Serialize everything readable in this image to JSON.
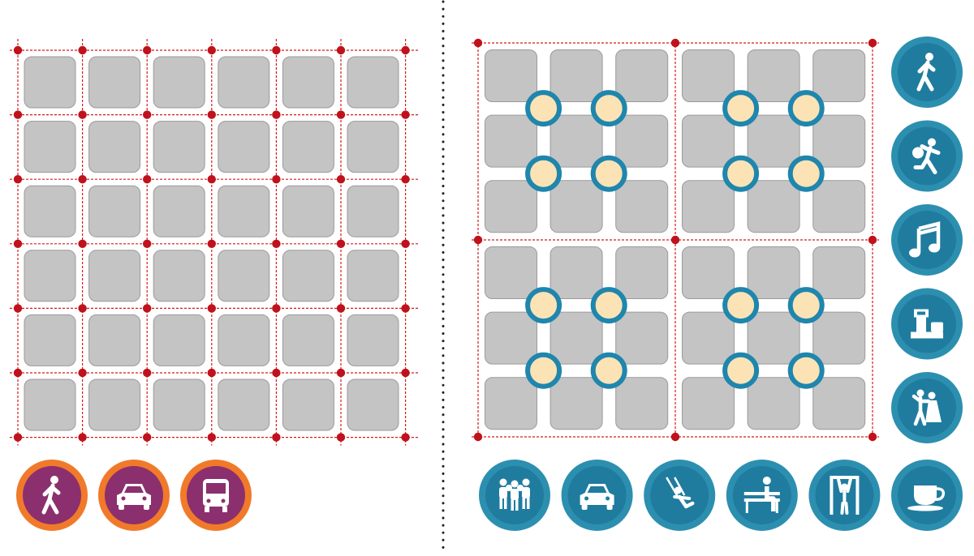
{
  "diagram": {
    "left_panel": {
      "grid": {
        "rows": 6,
        "cols": 6
      },
      "icons": [
        {
          "name": "pedestrian-icon",
          "ring_color": "#f07a2a",
          "fill_color": "#8b2f6e"
        },
        {
          "name": "car-icon",
          "ring_color": "#f07a2a",
          "fill_color": "#8b2f6e"
        },
        {
          "name": "bus-icon",
          "ring_color": "#f07a2a",
          "fill_color": "#8b2f6e"
        }
      ]
    },
    "right_panel": {
      "superblocks": {
        "rows": 2,
        "cols": 2,
        "inner_rows": 3,
        "inner_cols": 3
      },
      "side_icons": [
        {
          "name": "pedestrian-icon",
          "ring_color": "#2c8fb0",
          "fill_color": "#1f7c9f"
        },
        {
          "name": "football-player-icon",
          "ring_color": "#2c8fb0",
          "fill_color": "#1f7c9f"
        },
        {
          "name": "music-note-icon",
          "ring_color": "#2c8fb0",
          "fill_color": "#1f7c9f"
        },
        {
          "name": "market-stall-icon",
          "ring_color": "#2c8fb0",
          "fill_color": "#1f7c9f"
        },
        {
          "name": "dancing-couple-icon",
          "ring_color": "#2c8fb0",
          "fill_color": "#1f7c9f"
        }
      ],
      "bottom_icons": [
        {
          "name": "group-of-people-icon",
          "ring_color": "#2c8fb0",
          "fill_color": "#1f7c9f"
        },
        {
          "name": "car-icon",
          "ring_color": "#2c8fb0",
          "fill_color": "#1f7c9f"
        },
        {
          "name": "child-swing-icon",
          "ring_color": "#2c8fb0",
          "fill_color": "#1f7c9f"
        },
        {
          "name": "person-on-bench-icon",
          "ring_color": "#2c8fb0",
          "fill_color": "#1f7c9f"
        },
        {
          "name": "pull-up-bar-icon",
          "ring_color": "#2c8fb0",
          "fill_color": "#1f7c9f"
        },
        {
          "name": "coffee-cup-icon",
          "ring_color": "#2c8fb0",
          "fill_color": "#1f7c9f"
        }
      ]
    },
    "colors": {
      "block_fill": "#c4c4c4",
      "block_stroke": "#9a9a9a",
      "street_line": "#d11c1c",
      "node_dot": "#c0121c",
      "plaza_fill": "#fbe3b6",
      "plaza_ring": "#1f86ad",
      "divider": "#222222"
    }
  }
}
